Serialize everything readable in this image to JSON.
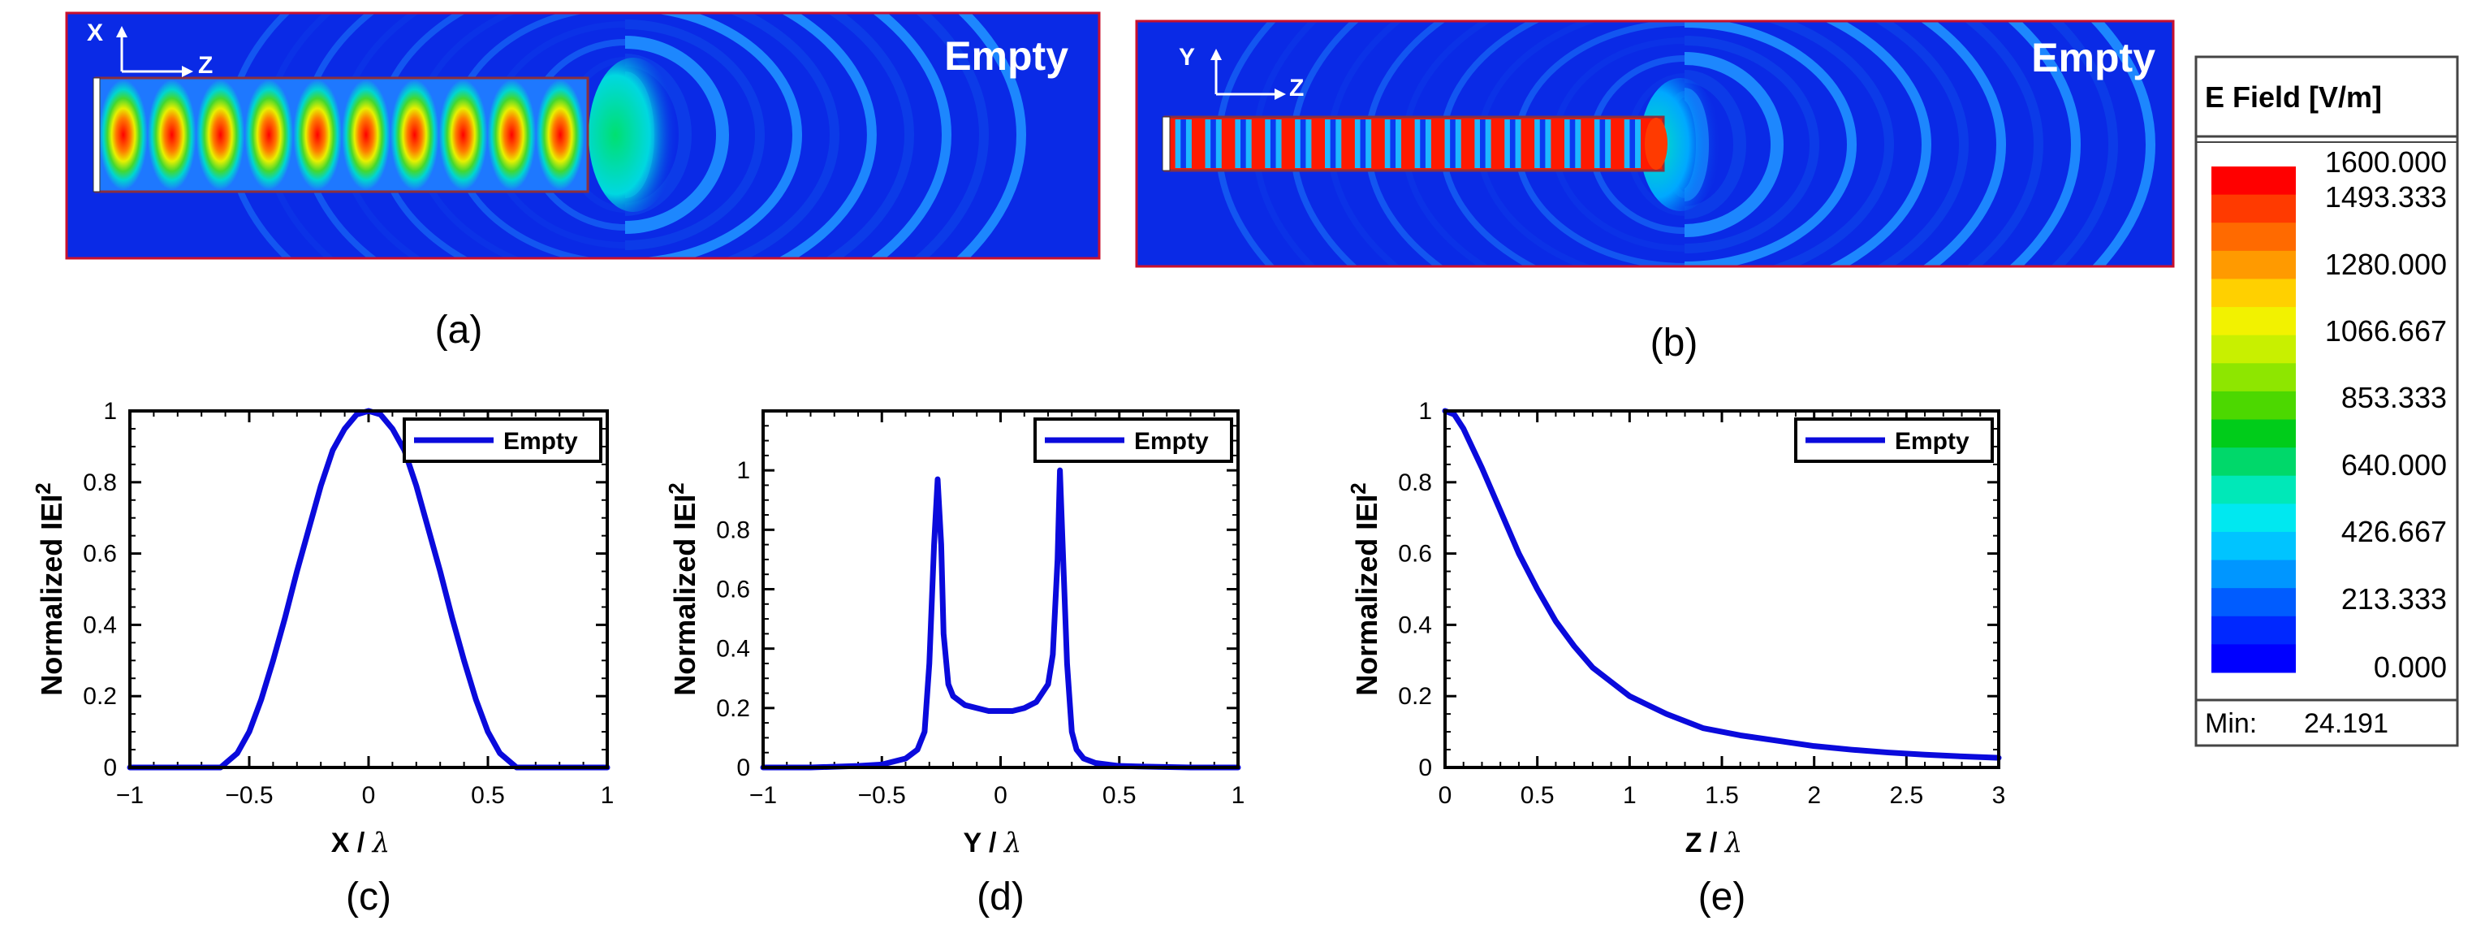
{
  "colors": {
    "line": "#0a0adc",
    "field_bg": "#0a2ae6",
    "panel_border": "#c8102e"
  },
  "field_maps": [
    {
      "panel_label": "(a)",
      "tag": "Empty",
      "axis_vertical": "X",
      "axis_horizontal": "Z",
      "standing_lobes": 10,
      "radiation_rings": 11
    },
    {
      "panel_label": "(b)",
      "tag": "Empty",
      "axis_vertical": "Y",
      "axis_horizontal": "Z",
      "standing_lobes": 16,
      "radiation_rings": 13
    }
  ],
  "colorbar": {
    "title": "E Field [V/m]",
    "ticks": [
      "1600.000",
      "1493.333",
      "1280.000",
      "1066.667",
      "853.333",
      "640.000",
      "426.667",
      "213.333",
      "0.000"
    ],
    "min_label": "Min:",
    "min_value": "24.191",
    "colors": [
      "#ff0000",
      "#ff3a00",
      "#ff6a00",
      "#ff9a00",
      "#ffd000",
      "#f2f200",
      "#c8f000",
      "#8ee600",
      "#4cd800",
      "#00cc1a",
      "#00d86a",
      "#00e8b8",
      "#00e8f0",
      "#00c4ff",
      "#0096ff",
      "#005cff",
      "#0028ff",
      "#0000ff"
    ]
  },
  "chart_data": [
    {
      "type": "line",
      "panel_label": "(c)",
      "title": "",
      "xlabel_main": "X /",
      "xlabel_symbol": "λ",
      "ylabel": "Normalized IEI",
      "ylabel_sup": "2",
      "xlim": [
        -1,
        1
      ],
      "ylim": [
        0,
        1
      ],
      "xticks": [
        "−1",
        "−0.5",
        "0",
        "0.5",
        "1"
      ],
      "yticks": [
        "0",
        "0.2",
        "0.4",
        "0.6",
        "0.8",
        "1"
      ],
      "legend": "Empty",
      "legend_position": "top-right",
      "series": [
        {
          "name": "Empty",
          "x": [
            -1,
            -0.9,
            -0.8,
            -0.7,
            -0.62,
            -0.55,
            -0.5,
            -0.45,
            -0.4,
            -0.35,
            -0.3,
            -0.25,
            -0.2,
            -0.15,
            -0.1,
            -0.05,
            0,
            0.05,
            0.1,
            0.15,
            0.2,
            0.25,
            0.3,
            0.35,
            0.4,
            0.45,
            0.5,
            0.55,
            0.62,
            0.7,
            0.8,
            0.9,
            1
          ],
          "y": [
            0,
            0,
            0,
            0,
            0,
            0.04,
            0.1,
            0.19,
            0.3,
            0.42,
            0.55,
            0.67,
            0.79,
            0.89,
            0.95,
            0.99,
            1,
            0.99,
            0.95,
            0.89,
            0.79,
            0.67,
            0.55,
            0.42,
            0.3,
            0.19,
            0.1,
            0.04,
            0,
            0,
            0,
            0,
            0
          ]
        }
      ]
    },
    {
      "type": "line",
      "panel_label": "(d)",
      "title": "",
      "xlabel_main": "Y /",
      "xlabel_symbol": "λ",
      "ylabel": "Normalized IEI",
      "ylabel_sup": "2",
      "xlim": [
        -1,
        1
      ],
      "ylim": [
        0,
        1.2
      ],
      "xticks": [
        "−1",
        "−0.5",
        "0",
        "0.5",
        "1"
      ],
      "yticks": [
        "0",
        "0.2",
        "0.4",
        "0.6",
        "0.8",
        "1"
      ],
      "legend": "Empty",
      "legend_position": "top-right",
      "series": [
        {
          "name": "Empty",
          "x": [
            -1,
            -0.8,
            -0.6,
            -0.5,
            -0.4,
            -0.35,
            -0.32,
            -0.3,
            -0.28,
            -0.265,
            -0.25,
            -0.24,
            -0.22,
            -0.2,
            -0.15,
            -0.1,
            -0.05,
            0,
            0.05,
            0.1,
            0.15,
            0.2,
            0.22,
            0.24,
            0.25,
            0.26,
            0.28,
            0.3,
            0.32,
            0.35,
            0.4,
            0.5,
            0.6,
            0.8,
            1
          ],
          "y": [
            0,
            0,
            0.005,
            0.01,
            0.03,
            0.06,
            0.12,
            0.35,
            0.75,
            0.97,
            0.75,
            0.45,
            0.28,
            0.24,
            0.21,
            0.2,
            0.19,
            0.19,
            0.19,
            0.2,
            0.22,
            0.28,
            0.38,
            0.7,
            1.0,
            0.78,
            0.35,
            0.12,
            0.06,
            0.03,
            0.015,
            0.005,
            0.003,
            0,
            0
          ]
        }
      ]
    },
    {
      "type": "line",
      "panel_label": "(e)",
      "title": "",
      "xlabel_main": "Z /",
      "xlabel_symbol": "λ",
      "ylabel": "Normalized IEI",
      "ylabel_sup": "2",
      "xlim": [
        0,
        3
      ],
      "ylim": [
        0,
        1
      ],
      "xticks": [
        "0",
        "0.5",
        "1",
        "1.5",
        "2",
        "2.5",
        "3"
      ],
      "yticks": [
        "0",
        "0.2",
        "0.4",
        "0.6",
        "0.8",
        "1"
      ],
      "legend": "Empty",
      "legend_position": "top-right",
      "series": [
        {
          "name": "Empty",
          "x": [
            0,
            0.05,
            0.1,
            0.2,
            0.3,
            0.4,
            0.5,
            0.6,
            0.7,
            0.8,
            0.9,
            1,
            1.2,
            1.4,
            1.6,
            1.8,
            2,
            2.2,
            2.4,
            2.6,
            2.8,
            3
          ],
          "y": [
            1,
            0.99,
            0.95,
            0.84,
            0.72,
            0.6,
            0.5,
            0.41,
            0.34,
            0.28,
            0.24,
            0.2,
            0.15,
            0.11,
            0.09,
            0.075,
            0.06,
            0.05,
            0.042,
            0.036,
            0.031,
            0.027
          ]
        }
      ]
    }
  ]
}
